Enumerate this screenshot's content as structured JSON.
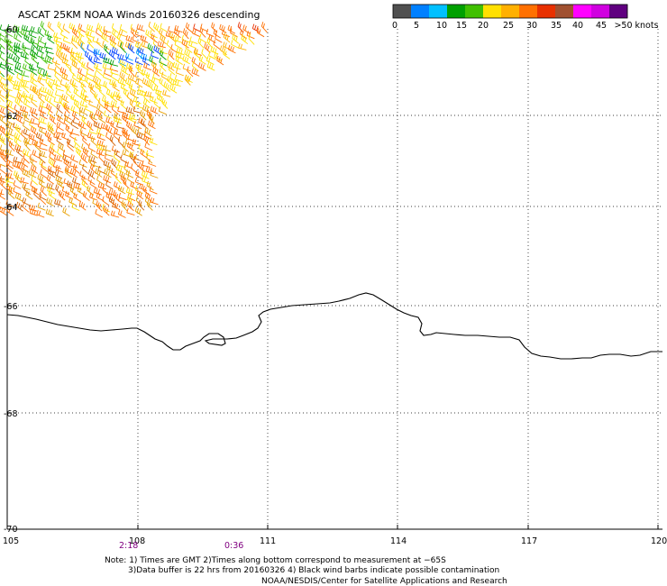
{
  "title": "ASCAT 25KM NOAA Winds 20160326 descending",
  "legend": {
    "colors": [
      "#505050",
      "#0080ff",
      "#00c0ff",
      "#00a000",
      "#40c000",
      "#ffe000",
      "#ffb000",
      "#ff7000",
      "#e83000",
      "#a05030",
      "#ff00ff",
      "#d000e0",
      "#600080"
    ],
    "labels": [
      "0",
      "5",
      "10",
      "15",
      "20",
      "25",
      "30",
      "35",
      "40",
      "45",
      ">50 knots"
    ]
  },
  "lat_ticks": [
    "-60",
    "-62",
    "-64",
    "-66",
    "-68",
    "-70"
  ],
  "lon_ticks": [
    "105",
    "108",
    "111",
    "114",
    "117",
    "120"
  ],
  "pass_times": [
    "2:18",
    "0:36"
  ],
  "notes": [
    "Note: 1) Times are GMT 2)Times along bottom correspond to measurement at −65S",
    "3)Data buffer is 22 hrs from 20160326 4) Black wind barbs indicate possible contamination",
    "NOAA/NESDIS/Center for Satellite Applications and Research"
  ],
  "colors": {
    "grid": "#000000",
    "coastline": "#000000",
    "pass_time": "#800080"
  },
  "icons": [
    "wind-barb-icon"
  ]
}
